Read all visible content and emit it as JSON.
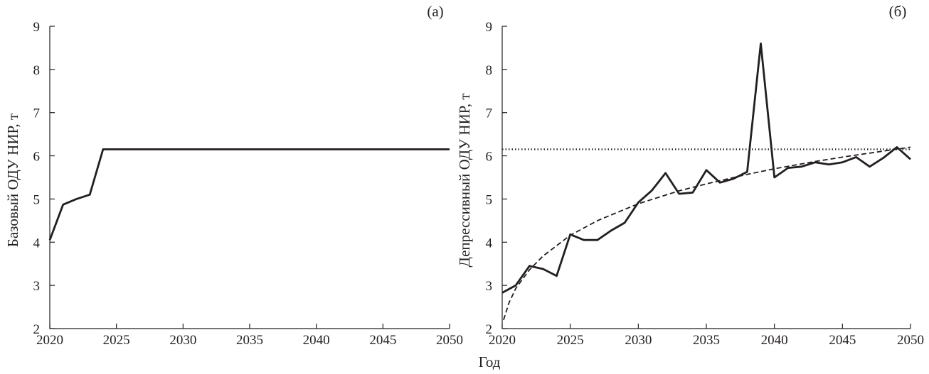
{
  "chart_data": [
    {
      "type": "line",
      "panel_label": "(а)",
      "xlabel": "",
      "ylabel": "Базовый ОДУ НИР, т",
      "xlim": [
        2020,
        2050
      ],
      "ylim": [
        2,
        9
      ],
      "xticks": [
        "2020",
        "2025",
        "2030",
        "2035",
        "2040",
        "2045",
        "2050"
      ],
      "yticks": [
        "2",
        "3",
        "4",
        "5",
        "6",
        "7",
        "8",
        "9"
      ],
      "grid": false,
      "series": [
        {
          "style": "solid",
          "color": "#231f20",
          "x": [
            2020,
            2021,
            2022,
            2023,
            2024,
            2025,
            2030,
            2035,
            2040,
            2045,
            2050
          ],
          "y": [
            4.05,
            4.87,
            5.0,
            5.1,
            6.15,
            6.15,
            6.15,
            6.15,
            6.15,
            6.15,
            6.15
          ]
        }
      ]
    },
    {
      "type": "line",
      "panel_label": "(б)",
      "xlabel": "",
      "ylabel": "Депрессивный ОДУ НИР, т",
      "xlim": [
        2020,
        2050
      ],
      "ylim": [
        2,
        9
      ],
      "xticks": [
        "2020",
        "2025",
        "2030",
        "2035",
        "2040",
        "2045",
        "2050"
      ],
      "yticks": [
        "2",
        "3",
        "4",
        "5",
        "6",
        "7",
        "8",
        "9"
      ],
      "grid": false,
      "series": [
        {
          "style": "solid",
          "color": "#231f20",
          "x": [
            2020,
            2021,
            2022,
            2023,
            2024,
            2025,
            2026,
            2027,
            2028,
            2029,
            2030,
            2031,
            2032,
            2033,
            2034,
            2035,
            2036,
            2037,
            2038,
            2039,
            2040,
            2041,
            2042,
            2043,
            2044,
            2045,
            2046,
            2047,
            2048,
            2049,
            2050
          ],
          "y": [
            2.83,
            3.0,
            3.45,
            3.38,
            3.22,
            4.18,
            4.05,
            4.05,
            4.27,
            4.45,
            4.92,
            5.2,
            5.6,
            5.12,
            5.15,
            5.67,
            5.38,
            5.47,
            5.63,
            8.6,
            5.5,
            5.72,
            5.75,
            5.85,
            5.8,
            5.85,
            5.97,
            5.75,
            5.95,
            6.2,
            5.92
          ]
        },
        {
          "style": "dashed",
          "color": "#231f20",
          "x": [
            2020.1,
            2020.5,
            2021,
            2022,
            2023,
            2025,
            2027,
            2030,
            2033,
            2035,
            2038,
            2040,
            2043,
            2045,
            2048,
            2050
          ],
          "y": [
            2.2,
            2.6,
            2.93,
            3.36,
            3.68,
            4.16,
            4.5,
            4.89,
            5.19,
            5.35,
            5.57,
            5.7,
            5.87,
            5.97,
            6.11,
            6.2
          ]
        },
        {
          "style": "dotted",
          "color": "#231f20",
          "x": [
            2020,
            2050
          ],
          "y": [
            6.15,
            6.15
          ]
        }
      ]
    }
  ],
  "shared_xlabel": "Год"
}
